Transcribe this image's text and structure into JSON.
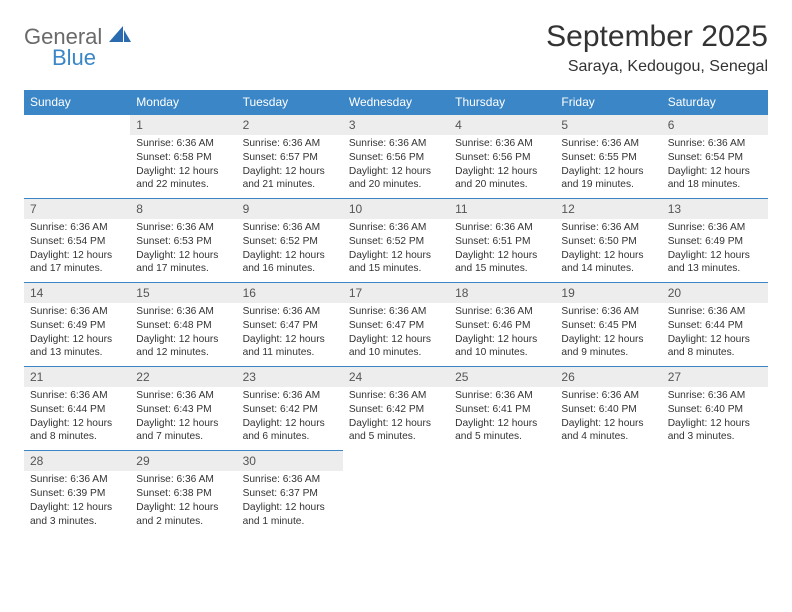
{
  "logo": {
    "word1": "General",
    "word2": "Blue"
  },
  "title": {
    "month": "September 2025",
    "location": "Saraya, Kedougou, Senegal"
  },
  "colors": {
    "header_bg": "#3b86c6",
    "header_text": "#ffffff",
    "daynum_bg": "#ededed",
    "daynum_text": "#555555",
    "border": "#3b86c6",
    "body_text": "#333333",
    "logo_gray": "#6a6a6a",
    "logo_blue": "#3b86c6",
    "page_bg": "#ffffff"
  },
  "typography": {
    "title_fontsize": 30,
    "location_fontsize": 16,
    "dayheader_fontsize": 12,
    "daynum_fontsize": 12,
    "cell_fontsize": 10.2,
    "logo_fontsize": 22
  },
  "weekdays": [
    "Sunday",
    "Monday",
    "Tuesday",
    "Wednesday",
    "Thursday",
    "Friday",
    "Saturday"
  ],
  "weeks": [
    [
      null,
      {
        "n": "1",
        "sr": "Sunrise: 6:36 AM",
        "ss": "Sunset: 6:58 PM",
        "dl": "Daylight: 12 hours and 22 minutes."
      },
      {
        "n": "2",
        "sr": "Sunrise: 6:36 AM",
        "ss": "Sunset: 6:57 PM",
        "dl": "Daylight: 12 hours and 21 minutes."
      },
      {
        "n": "3",
        "sr": "Sunrise: 6:36 AM",
        "ss": "Sunset: 6:56 PM",
        "dl": "Daylight: 12 hours and 20 minutes."
      },
      {
        "n": "4",
        "sr": "Sunrise: 6:36 AM",
        "ss": "Sunset: 6:56 PM",
        "dl": "Daylight: 12 hours and 20 minutes."
      },
      {
        "n": "5",
        "sr": "Sunrise: 6:36 AM",
        "ss": "Sunset: 6:55 PM",
        "dl": "Daylight: 12 hours and 19 minutes."
      },
      {
        "n": "6",
        "sr": "Sunrise: 6:36 AM",
        "ss": "Sunset: 6:54 PM",
        "dl": "Daylight: 12 hours and 18 minutes."
      }
    ],
    [
      {
        "n": "7",
        "sr": "Sunrise: 6:36 AM",
        "ss": "Sunset: 6:54 PM",
        "dl": "Daylight: 12 hours and 17 minutes."
      },
      {
        "n": "8",
        "sr": "Sunrise: 6:36 AM",
        "ss": "Sunset: 6:53 PM",
        "dl": "Daylight: 12 hours and 17 minutes."
      },
      {
        "n": "9",
        "sr": "Sunrise: 6:36 AM",
        "ss": "Sunset: 6:52 PM",
        "dl": "Daylight: 12 hours and 16 minutes."
      },
      {
        "n": "10",
        "sr": "Sunrise: 6:36 AM",
        "ss": "Sunset: 6:52 PM",
        "dl": "Daylight: 12 hours and 15 minutes."
      },
      {
        "n": "11",
        "sr": "Sunrise: 6:36 AM",
        "ss": "Sunset: 6:51 PM",
        "dl": "Daylight: 12 hours and 15 minutes."
      },
      {
        "n": "12",
        "sr": "Sunrise: 6:36 AM",
        "ss": "Sunset: 6:50 PM",
        "dl": "Daylight: 12 hours and 14 minutes."
      },
      {
        "n": "13",
        "sr": "Sunrise: 6:36 AM",
        "ss": "Sunset: 6:49 PM",
        "dl": "Daylight: 12 hours and 13 minutes."
      }
    ],
    [
      {
        "n": "14",
        "sr": "Sunrise: 6:36 AM",
        "ss": "Sunset: 6:49 PM",
        "dl": "Daylight: 12 hours and 13 minutes."
      },
      {
        "n": "15",
        "sr": "Sunrise: 6:36 AM",
        "ss": "Sunset: 6:48 PM",
        "dl": "Daylight: 12 hours and 12 minutes."
      },
      {
        "n": "16",
        "sr": "Sunrise: 6:36 AM",
        "ss": "Sunset: 6:47 PM",
        "dl": "Daylight: 12 hours and 11 minutes."
      },
      {
        "n": "17",
        "sr": "Sunrise: 6:36 AM",
        "ss": "Sunset: 6:47 PM",
        "dl": "Daylight: 12 hours and 10 minutes."
      },
      {
        "n": "18",
        "sr": "Sunrise: 6:36 AM",
        "ss": "Sunset: 6:46 PM",
        "dl": "Daylight: 12 hours and 10 minutes."
      },
      {
        "n": "19",
        "sr": "Sunrise: 6:36 AM",
        "ss": "Sunset: 6:45 PM",
        "dl": "Daylight: 12 hours and 9 minutes."
      },
      {
        "n": "20",
        "sr": "Sunrise: 6:36 AM",
        "ss": "Sunset: 6:44 PM",
        "dl": "Daylight: 12 hours and 8 minutes."
      }
    ],
    [
      {
        "n": "21",
        "sr": "Sunrise: 6:36 AM",
        "ss": "Sunset: 6:44 PM",
        "dl": "Daylight: 12 hours and 8 minutes."
      },
      {
        "n": "22",
        "sr": "Sunrise: 6:36 AM",
        "ss": "Sunset: 6:43 PM",
        "dl": "Daylight: 12 hours and 7 minutes."
      },
      {
        "n": "23",
        "sr": "Sunrise: 6:36 AM",
        "ss": "Sunset: 6:42 PM",
        "dl": "Daylight: 12 hours and 6 minutes."
      },
      {
        "n": "24",
        "sr": "Sunrise: 6:36 AM",
        "ss": "Sunset: 6:42 PM",
        "dl": "Daylight: 12 hours and 5 minutes."
      },
      {
        "n": "25",
        "sr": "Sunrise: 6:36 AM",
        "ss": "Sunset: 6:41 PM",
        "dl": "Daylight: 12 hours and 5 minutes."
      },
      {
        "n": "26",
        "sr": "Sunrise: 6:36 AM",
        "ss": "Sunset: 6:40 PM",
        "dl": "Daylight: 12 hours and 4 minutes."
      },
      {
        "n": "27",
        "sr": "Sunrise: 6:36 AM",
        "ss": "Sunset: 6:40 PM",
        "dl": "Daylight: 12 hours and 3 minutes."
      }
    ],
    [
      {
        "n": "28",
        "sr": "Sunrise: 6:36 AM",
        "ss": "Sunset: 6:39 PM",
        "dl": "Daylight: 12 hours and 3 minutes."
      },
      {
        "n": "29",
        "sr": "Sunrise: 6:36 AM",
        "ss": "Sunset: 6:38 PM",
        "dl": "Daylight: 12 hours and 2 minutes."
      },
      {
        "n": "30",
        "sr": "Sunrise: 6:36 AM",
        "ss": "Sunset: 6:37 PM",
        "dl": "Daylight: 12 hours and 1 minute."
      },
      null,
      null,
      null,
      null
    ]
  ]
}
